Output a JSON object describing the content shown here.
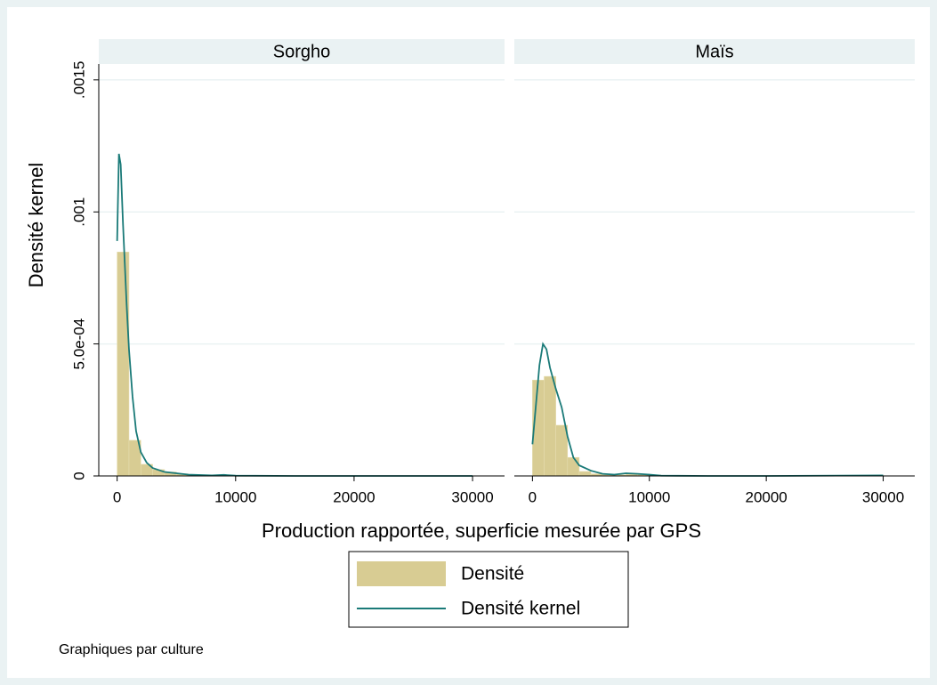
{
  "chart_data": {
    "type": "histogram",
    "ylabel": "Densité kernel",
    "xlabel": "Production rapportée, superficie mesurée par GPS",
    "note": "Graphiques par culture",
    "series": [
      {
        "name": "Densité",
        "color": "#d8cc93"
      },
      {
        "name": "Densité kernel",
        "color": "#1a7a78"
      }
    ],
    "bins": [
      0,
      1000,
      2000,
      3000,
      4000,
      5000,
      6000,
      7000,
      8000,
      9000,
      10000,
      11000,
      12000,
      13000,
      14000,
      15000,
      16000,
      17000,
      18000,
      19000,
      20000,
      21000,
      22000,
      23000,
      24000,
      25000,
      26000,
      27000,
      28000,
      29000,
      30000
    ],
    "xlim": [
      -1550,
      32700
    ],
    "ylim": [
      0,
      0.00156
    ],
    "xticks": [
      0,
      10000,
      20000,
      30000
    ],
    "yticks": [
      0,
      {
        "value": 0.0005,
        "label": "5.0e-04"
      },
      {
        "value": 0.001,
        "label": ".001"
      },
      {
        "value": 0.0015,
        "label": ".0015"
      }
    ],
    "grid": true,
    "panels": [
      {
        "title": "Sorgho",
        "counts": [
          0.000848,
          0.000135,
          4.4e-05,
          2.4e-05,
          1.5e-05,
          8e-06,
          5e-06,
          3e-06,
          2e-06,
          2e-06,
          1e-06,
          0,
          0,
          0,
          0,
          0,
          0,
          0,
          0,
          0,
          0,
          0,
          0,
          0,
          0,
          0,
          0,
          0,
          0,
          0
        ],
        "kernel_x": [
          0,
          150,
          300,
          500,
          800,
          1000,
          1300,
          1600,
          2000,
          2500,
          3000,
          4000,
          5000,
          6000,
          8000,
          9000,
          10000,
          15000,
          20000,
          30000
        ],
        "kernel_values": [
          0.00089,
          0.00122,
          0.00118,
          0.00095,
          0.00065,
          0.00048,
          0.0003,
          0.00017,
          9e-05,
          5e-05,
          3e-05,
          1.5e-05,
          1e-05,
          5e-06,
          2e-06,
          4e-06,
          1e-06,
          0,
          0,
          0
        ]
      },
      {
        "title": "Maïs",
        "counts": [
          0.000363,
          0.000377,
          0.000192,
          7e-05,
          1.7e-05,
          8e-06,
          5e-06,
          4e-06,
          6e-06,
          7e-06,
          3e-06,
          0,
          0,
          0,
          0,
          0,
          0,
          0,
          0,
          0,
          0,
          0,
          0,
          0,
          0,
          0,
          0,
          0,
          0,
          2e-06
        ],
        "kernel_x": [
          0,
          300,
          600,
          900,
          1200,
          1500,
          2000,
          2500,
          3000,
          3500,
          4000,
          5000,
          6000,
          7000,
          8000,
          9000,
          10000,
          11000,
          15000,
          20000,
          30000
        ],
        "kernel_values": [
          0.00012,
          0.00027,
          0.00042,
          0.0005,
          0.00048,
          0.00041,
          0.00033,
          0.00026,
          0.00015,
          7e-05,
          4e-05,
          2e-05,
          8e-06,
          5e-06,
          1e-05,
          8e-06,
          5e-06,
          1e-06,
          0,
          0,
          2e-06
        ]
      }
    ]
  }
}
